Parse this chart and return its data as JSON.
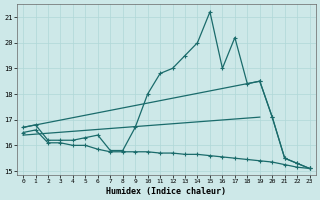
{
  "xlabel": "Humidex (Indice chaleur)",
  "xlim": [
    -0.5,
    23.5
  ],
  "ylim": [
    14.85,
    21.5
  ],
  "yticks": [
    15,
    16,
    17,
    18,
    19,
    20,
    21
  ],
  "xticks": [
    0,
    1,
    2,
    3,
    4,
    5,
    6,
    7,
    8,
    9,
    10,
    11,
    12,
    13,
    14,
    15,
    16,
    17,
    18,
    19,
    20,
    21,
    22,
    23
  ],
  "bg_color": "#cde8e8",
  "line_color": "#1a6b6b",
  "grid_color": "#b0d8d8",
  "series": [
    {
      "x": [
        0,
        1,
        2,
        3,
        4,
        5,
        6,
        7,
        8,
        9,
        10,
        11,
        12,
        13,
        14,
        15,
        16,
        17,
        18,
        19,
        20,
        21,
        22,
        23
      ],
      "y": [
        16.7,
        16.8,
        16.2,
        16.2,
        16.2,
        16.3,
        16.4,
        15.8,
        15.8,
        16.7,
        18.0,
        18.8,
        19.0,
        19.5,
        20.0,
        21.2,
        19.0,
        20.2,
        18.4,
        18.5,
        17.1,
        15.5,
        15.3,
        15.1
      ],
      "marker": "+",
      "linestyle": "-",
      "linewidth": 0.9
    },
    {
      "x": [
        0,
        19
      ],
      "y": [
        16.7,
        18.5
      ],
      "marker": null,
      "linestyle": "-",
      "linewidth": 0.9
    },
    {
      "x": [
        0,
        19
      ],
      "y": [
        16.4,
        17.1
      ],
      "marker": null,
      "linestyle": "-",
      "linewidth": 0.9
    },
    {
      "x": [
        0,
        1,
        2,
        3,
        4,
        5,
        6,
        7,
        8,
        9,
        10,
        11,
        12,
        13,
        14,
        15,
        16,
        17,
        18,
        19,
        20,
        21,
        22,
        23
      ],
      "y": [
        16.5,
        16.6,
        16.1,
        16.1,
        16.0,
        16.0,
        15.85,
        15.75,
        15.75,
        15.75,
        15.75,
        15.7,
        15.7,
        15.65,
        15.65,
        15.6,
        15.55,
        15.5,
        15.45,
        15.4,
        15.35,
        15.25,
        15.15,
        15.1
      ],
      "marker": "+",
      "linestyle": "-",
      "linewidth": 0.9
    },
    {
      "x": [
        19,
        20,
        21,
        22,
        23
      ],
      "y": [
        18.5,
        17.1,
        15.5,
        15.3,
        15.1
      ],
      "marker": "+",
      "linestyle": "-",
      "linewidth": 0.9
    }
  ]
}
